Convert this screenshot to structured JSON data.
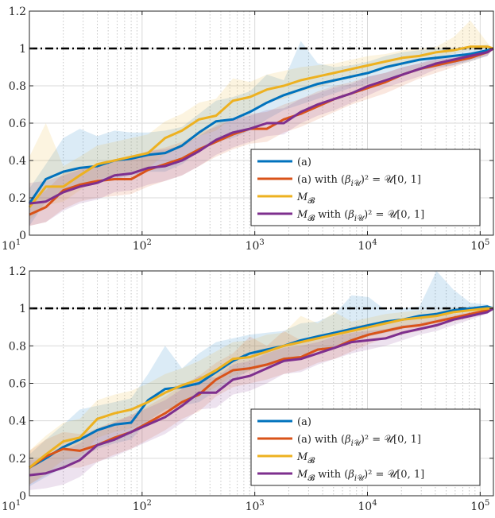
{
  "chart_data": [
    {
      "type": "line",
      "xscale": "log",
      "xlim": [
        10,
        131072
      ],
      "ylim": [
        0,
        1.2
      ],
      "grid": true,
      "legend_position": "bottom-right",
      "x_ticks": [
        10,
        100,
        1000,
        10000,
        100000
      ],
      "x_tick_labels": [
        {
          "base": "10",
          "exp": "1"
        },
        {
          "base": "10",
          "exp": "2"
        },
        {
          "base": "10",
          "exp": "3"
        },
        {
          "base": "10",
          "exp": "4"
        },
        {
          "base": "10",
          "exp": "5"
        }
      ],
      "y_ticks": [
        0,
        0.2,
        0.4,
        0.6,
        0.8,
        1,
        1.2
      ],
      "y_tick_labels": [
        "0",
        "0.2",
        "0.4",
        "0.6",
        "0.8",
        "1",
        "1.2"
      ],
      "reference_line": {
        "y": 1,
        "style": "dash-dot",
        "color": "#000000"
      },
      "x": [
        10,
        14,
        20,
        28,
        40,
        57,
        80,
        113,
        160,
        226,
        320,
        453,
        640,
        905,
        1280,
        1810,
        2560,
        3620,
        5120,
        7240,
        10240,
        14480,
        20480,
        28960,
        40960,
        57920,
        81920,
        115840,
        131072
      ],
      "series": [
        {
          "name": "(a)",
          "color": "#0072BD",
          "values": [
            0.17,
            0.3,
            0.34,
            0.36,
            0.37,
            0.4,
            0.41,
            0.43,
            0.44,
            0.48,
            0.55,
            0.61,
            0.62,
            0.66,
            0.71,
            0.75,
            0.78,
            0.81,
            0.83,
            0.85,
            0.87,
            0.9,
            0.92,
            0.94,
            0.95,
            0.96,
            0.97,
            0.99,
            1.0
          ],
          "band_lower": [
            0.05,
            0.18,
            0.24,
            0.27,
            0.3,
            0.3,
            0.32,
            0.34,
            0.34,
            0.38,
            0.45,
            0.5,
            0.52,
            0.56,
            0.62,
            0.67,
            0.7,
            0.73,
            0.76,
            0.79,
            0.81,
            0.84,
            0.86,
            0.88,
            0.9,
            0.91,
            0.93,
            0.96,
            1.0
          ],
          "band_upper": [
            0.25,
            0.38,
            0.52,
            0.57,
            0.53,
            0.56,
            0.55,
            0.55,
            0.56,
            0.58,
            0.65,
            0.72,
            0.74,
            0.77,
            0.86,
            0.83,
            1.04,
            0.92,
            0.9,
            0.91,
            0.93,
            0.96,
            0.98,
            0.99,
            1.0,
            1.0,
            1.01,
            1.02,
            1.0
          ]
        },
        {
          "name": "(a) with (β_{iU})² = U[0,1]",
          "color": "#D95319",
          "values": [
            0.11,
            0.15,
            0.24,
            0.27,
            0.29,
            0.3,
            0.3,
            0.35,
            0.38,
            0.41,
            0.46,
            0.5,
            0.54,
            0.57,
            0.57,
            0.62,
            0.65,
            0.69,
            0.73,
            0.76,
            0.79,
            0.82,
            0.86,
            0.89,
            0.91,
            0.93,
            0.95,
            0.98,
            1.0
          ],
          "band_lower": [
            0.05,
            0.07,
            0.14,
            0.18,
            0.2,
            0.21,
            0.22,
            0.26,
            0.29,
            0.32,
            0.37,
            0.42,
            0.46,
            0.49,
            0.5,
            0.55,
            0.58,
            0.62,
            0.66,
            0.7,
            0.73,
            0.76,
            0.8,
            0.84,
            0.87,
            0.9,
            0.93,
            0.96,
            1.0
          ],
          "band_upper": [
            0.18,
            0.24,
            0.33,
            0.36,
            0.38,
            0.4,
            0.41,
            0.45,
            0.47,
            0.5,
            0.55,
            0.58,
            0.62,
            0.65,
            0.66,
            0.7,
            0.73,
            0.77,
            0.8,
            0.82,
            0.85,
            0.87,
            0.9,
            0.92,
            0.94,
            0.95,
            0.97,
            0.99,
            1.0
          ]
        },
        {
          "name": "M_B",
          "color": "#EDB120",
          "values": [
            0.15,
            0.26,
            0.26,
            0.32,
            0.38,
            0.4,
            0.42,
            0.44,
            0.52,
            0.56,
            0.62,
            0.64,
            0.72,
            0.74,
            0.78,
            0.8,
            0.83,
            0.85,
            0.87,
            0.89,
            0.91,
            0.93,
            0.95,
            0.96,
            0.98,
            0.99,
            1.01,
            1.01,
            1.0
          ],
          "band_lower": [
            0.08,
            0.16,
            0.18,
            0.24,
            0.3,
            0.32,
            0.34,
            0.36,
            0.43,
            0.47,
            0.53,
            0.56,
            0.63,
            0.66,
            0.71,
            0.73,
            0.77,
            0.79,
            0.82,
            0.84,
            0.86,
            0.89,
            0.91,
            0.93,
            0.95,
            0.97,
            0.99,
            1.0,
            1.0
          ],
          "band_upper": [
            0.42,
            0.6,
            0.37,
            0.42,
            0.48,
            0.5,
            0.52,
            0.54,
            0.61,
            0.65,
            0.71,
            0.73,
            0.84,
            0.82,
            0.86,
            0.88,
            0.9,
            0.91,
            0.92,
            0.94,
            0.96,
            0.97,
            0.99,
            1.0,
            1.01,
            1.06,
            1.15,
            1.03,
            1.0
          ]
        },
        {
          "name": "M_B with (β_{iU})² = U[0,1]",
          "color": "#7E2F8E",
          "values": [
            0.17,
            0.18,
            0.23,
            0.26,
            0.28,
            0.32,
            0.33,
            0.36,
            0.37,
            0.4,
            0.45,
            0.51,
            0.55,
            0.57,
            0.6,
            0.6,
            0.66,
            0.7,
            0.73,
            0.76,
            0.8,
            0.83,
            0.86,
            0.89,
            0.92,
            0.94,
            0.96,
            0.98,
            1.0
          ],
          "band_lower": [
            0.05,
            0.07,
            0.13,
            0.17,
            0.19,
            0.23,
            0.24,
            0.27,
            0.29,
            0.32,
            0.37,
            0.43,
            0.47,
            0.5,
            0.53,
            0.54,
            0.6,
            0.64,
            0.67,
            0.71,
            0.75,
            0.79,
            0.82,
            0.85,
            0.89,
            0.91,
            0.94,
            0.96,
            1.0
          ],
          "band_upper": [
            0.28,
            0.29,
            0.32,
            0.35,
            0.37,
            0.4,
            0.42,
            0.45,
            0.46,
            0.48,
            0.53,
            0.59,
            0.62,
            0.64,
            0.67,
            0.68,
            0.73,
            0.76,
            0.79,
            0.81,
            0.85,
            0.87,
            0.9,
            0.92,
            0.95,
            0.96,
            0.98,
            0.99,
            1.0
          ]
        }
      ]
    },
    {
      "type": "line",
      "xscale": "log",
      "xlim": [
        10,
        131072
      ],
      "ylim": [
        0,
        1.2
      ],
      "grid": true,
      "legend_position": "bottom-right",
      "x_ticks": [
        10,
        100,
        1000,
        10000,
        100000
      ],
      "x_tick_labels": [
        {
          "base": "10",
          "exp": "1"
        },
        {
          "base": "10",
          "exp": "2"
        },
        {
          "base": "10",
          "exp": "3"
        },
        {
          "base": "10",
          "exp": "4"
        },
        {
          "base": "10",
          "exp": "5"
        }
      ],
      "y_ticks": [
        0,
        0.2,
        0.4,
        0.6,
        0.8,
        1,
        1.2
      ],
      "y_tick_labels": [
        "0",
        "0.2",
        "0.4",
        "0.6",
        "0.8",
        "1",
        "1.2"
      ],
      "reference_line": {
        "y": 1,
        "style": "dash-dot",
        "color": "#000000"
      },
      "x": [
        10,
        14,
        20,
        28,
        40,
        57,
        80,
        113,
        160,
        226,
        320,
        453,
        640,
        905,
        1280,
        1810,
        2560,
        3620,
        5120,
        7240,
        10240,
        14480,
        20480,
        28960,
        40960,
        57920,
        81920,
        115840,
        131072
      ],
      "series": [
        {
          "name": "(a)",
          "color": "#0072BD",
          "values": [
            0.15,
            0.2,
            0.26,
            0.3,
            0.35,
            0.38,
            0.39,
            0.51,
            0.57,
            0.58,
            0.6,
            0.66,
            0.72,
            0.76,
            0.78,
            0.8,
            0.83,
            0.85,
            0.87,
            0.89,
            0.91,
            0.93,
            0.94,
            0.96,
            0.97,
            0.99,
            1.0,
            1.01,
            1.0
          ],
          "band_lower": [
            0.05,
            0.1,
            0.15,
            0.2,
            0.25,
            0.28,
            0.3,
            0.4,
            0.46,
            0.48,
            0.5,
            0.56,
            0.62,
            0.67,
            0.69,
            0.71,
            0.75,
            0.77,
            0.8,
            0.82,
            0.85,
            0.87,
            0.89,
            0.92,
            0.93,
            0.96,
            0.98,
            0.99,
            1.0
          ],
          "band_upper": [
            0.22,
            0.3,
            0.38,
            0.46,
            0.48,
            0.5,
            0.52,
            0.65,
            0.8,
            0.68,
            0.76,
            0.82,
            0.84,
            0.86,
            0.87,
            0.88,
            0.92,
            0.93,
            0.97,
            1.07,
            1.06,
            0.99,
            1.0,
            1.01,
            1.2,
            1.1,
            1.03,
            1.02,
            1.0
          ]
        },
        {
          "name": "(a) with (β_{iU})² = U[0,1]",
          "color": "#D95319",
          "values": [
            0.15,
            0.21,
            0.25,
            0.24,
            0.27,
            0.31,
            0.34,
            0.39,
            0.44,
            0.5,
            0.54,
            0.62,
            0.67,
            0.68,
            0.7,
            0.73,
            0.74,
            0.78,
            0.79,
            0.83,
            0.86,
            0.88,
            0.9,
            0.91,
            0.93,
            0.95,
            0.97,
            0.99,
            1.0
          ],
          "band_lower": [
            0.06,
            0.11,
            0.15,
            0.15,
            0.18,
            0.22,
            0.25,
            0.3,
            0.35,
            0.41,
            0.45,
            0.53,
            0.58,
            0.6,
            0.62,
            0.65,
            0.67,
            0.71,
            0.73,
            0.77,
            0.81,
            0.84,
            0.86,
            0.88,
            0.9,
            0.93,
            0.95,
            0.98,
            1.0
          ],
          "band_upper": [
            0.24,
            0.3,
            0.34,
            0.33,
            0.36,
            0.4,
            0.43,
            0.48,
            0.53,
            0.59,
            0.64,
            0.71,
            0.76,
            0.85,
            0.8,
            0.88,
            0.83,
            0.86,
            0.87,
            0.9,
            0.92,
            0.93,
            0.94,
            0.95,
            0.96,
            0.97,
            0.98,
            1.0,
            1.0
          ]
        },
        {
          "name": "M_B",
          "color": "#EDB120",
          "values": [
            0.15,
            0.22,
            0.29,
            0.31,
            0.41,
            0.44,
            0.46,
            0.5,
            0.55,
            0.59,
            0.62,
            0.67,
            0.73,
            0.74,
            0.77,
            0.8,
            0.82,
            0.84,
            0.86,
            0.88,
            0.9,
            0.92,
            0.94,
            0.95,
            0.96,
            0.98,
            0.99,
            1.0,
            1.0
          ],
          "band_lower": [
            0.06,
            0.12,
            0.19,
            0.21,
            0.31,
            0.34,
            0.36,
            0.4,
            0.45,
            0.5,
            0.53,
            0.58,
            0.64,
            0.66,
            0.69,
            0.72,
            0.75,
            0.77,
            0.8,
            0.82,
            0.85,
            0.87,
            0.9,
            0.91,
            0.93,
            0.96,
            0.97,
            0.99,
            1.0
          ],
          "band_upper": [
            0.24,
            0.32,
            0.39,
            0.41,
            0.51,
            0.54,
            0.56,
            0.6,
            0.65,
            0.68,
            0.72,
            0.77,
            0.82,
            0.83,
            0.86,
            0.87,
            0.96,
            0.92,
            0.98,
            0.93,
            0.95,
            0.97,
            0.98,
            0.99,
            0.99,
            1.0,
            1.01,
            1.01,
            1.0
          ]
        },
        {
          "name": "M_B with (β_{iU})² = U[0,1]",
          "color": "#7E2F8E",
          "values": [
            0.11,
            0.12,
            0.15,
            0.19,
            0.27,
            0.3,
            0.34,
            0.38,
            0.42,
            0.48,
            0.55,
            0.55,
            0.62,
            0.64,
            0.68,
            0.72,
            0.73,
            0.76,
            0.79,
            0.82,
            0.83,
            0.84,
            0.87,
            0.89,
            0.91,
            0.94,
            0.96,
            0.98,
            1.0
          ],
          "band_lower": [
            0.03,
            0.04,
            0.06,
            0.1,
            0.18,
            0.21,
            0.25,
            0.29,
            0.33,
            0.39,
            0.46,
            0.47,
            0.54,
            0.56,
            0.6,
            0.65,
            0.66,
            0.7,
            0.73,
            0.76,
            0.78,
            0.8,
            0.83,
            0.86,
            0.88,
            0.91,
            0.94,
            0.97,
            1.0
          ],
          "band_upper": [
            0.19,
            0.2,
            0.24,
            0.28,
            0.36,
            0.39,
            0.43,
            0.47,
            0.51,
            0.57,
            0.64,
            0.63,
            0.7,
            0.72,
            0.76,
            0.79,
            0.8,
            0.82,
            0.85,
            0.87,
            0.88,
            0.89,
            0.91,
            0.92,
            0.94,
            0.96,
            0.98,
            0.99,
            1.0
          ]
        }
      ]
    }
  ]
}
